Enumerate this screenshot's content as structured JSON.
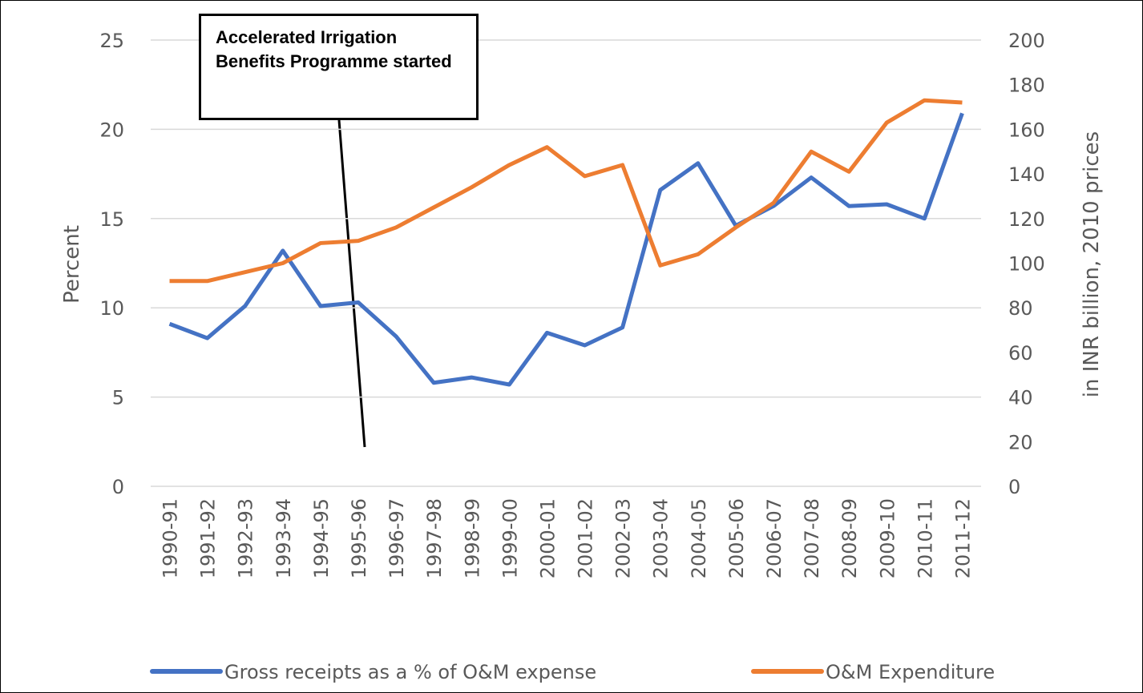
{
  "chart_data": {
    "type": "line",
    "categories": [
      "1990-91",
      "1991-92",
      "1992-93",
      "1993-94",
      "1994-95",
      "1995-96",
      "1996-97",
      "1997-98",
      "1998-99",
      "1999-00",
      "2000-01",
      "2001-02",
      "2002-03",
      "2003-04",
      "2004-05",
      "2005-06",
      "2006-07",
      "2007-08",
      "2008-09",
      "2009-10",
      "2010-11",
      "2011-12"
    ],
    "series": [
      {
        "name": "Gross receipts as a % of O&M expense",
        "color": "#4472c4",
        "values": [
          9.1,
          8.3,
          10.1,
          13.2,
          10.1,
          10.3,
          8.4,
          5.8,
          6.1,
          5.7,
          8.6,
          7.9,
          8.9,
          16.6,
          18.1,
          14.6,
          15.7,
          17.3,
          15.7,
          15.8,
          15.0,
          20.9
        ]
      },
      {
        "name": "O&M Expenditure",
        "color": "#ed7d31",
        "axis": "y2",
        "values": [
          92,
          92,
          96,
          100,
          109,
          110,
          116,
          125,
          134,
          144,
          152,
          139,
          144,
          99,
          104,
          116,
          127,
          150,
          141,
          163,
          173,
          172
        ]
      }
    ],
    "ylabel": "Percent",
    "y2label": "in INR billion, 2010 prices",
    "ylim": [
      0,
      25
    ],
    "yticks": [
      0,
      5,
      10,
      15,
      20,
      25
    ],
    "y2lim": [
      0,
      200
    ],
    "y2ticks": [
      0,
      20,
      40,
      60,
      80,
      100,
      120,
      140,
      160,
      180,
      200
    ],
    "grid": true,
    "legend": "bottom",
    "annotation": "Accelerated Irrigation Benefits Programme started"
  }
}
